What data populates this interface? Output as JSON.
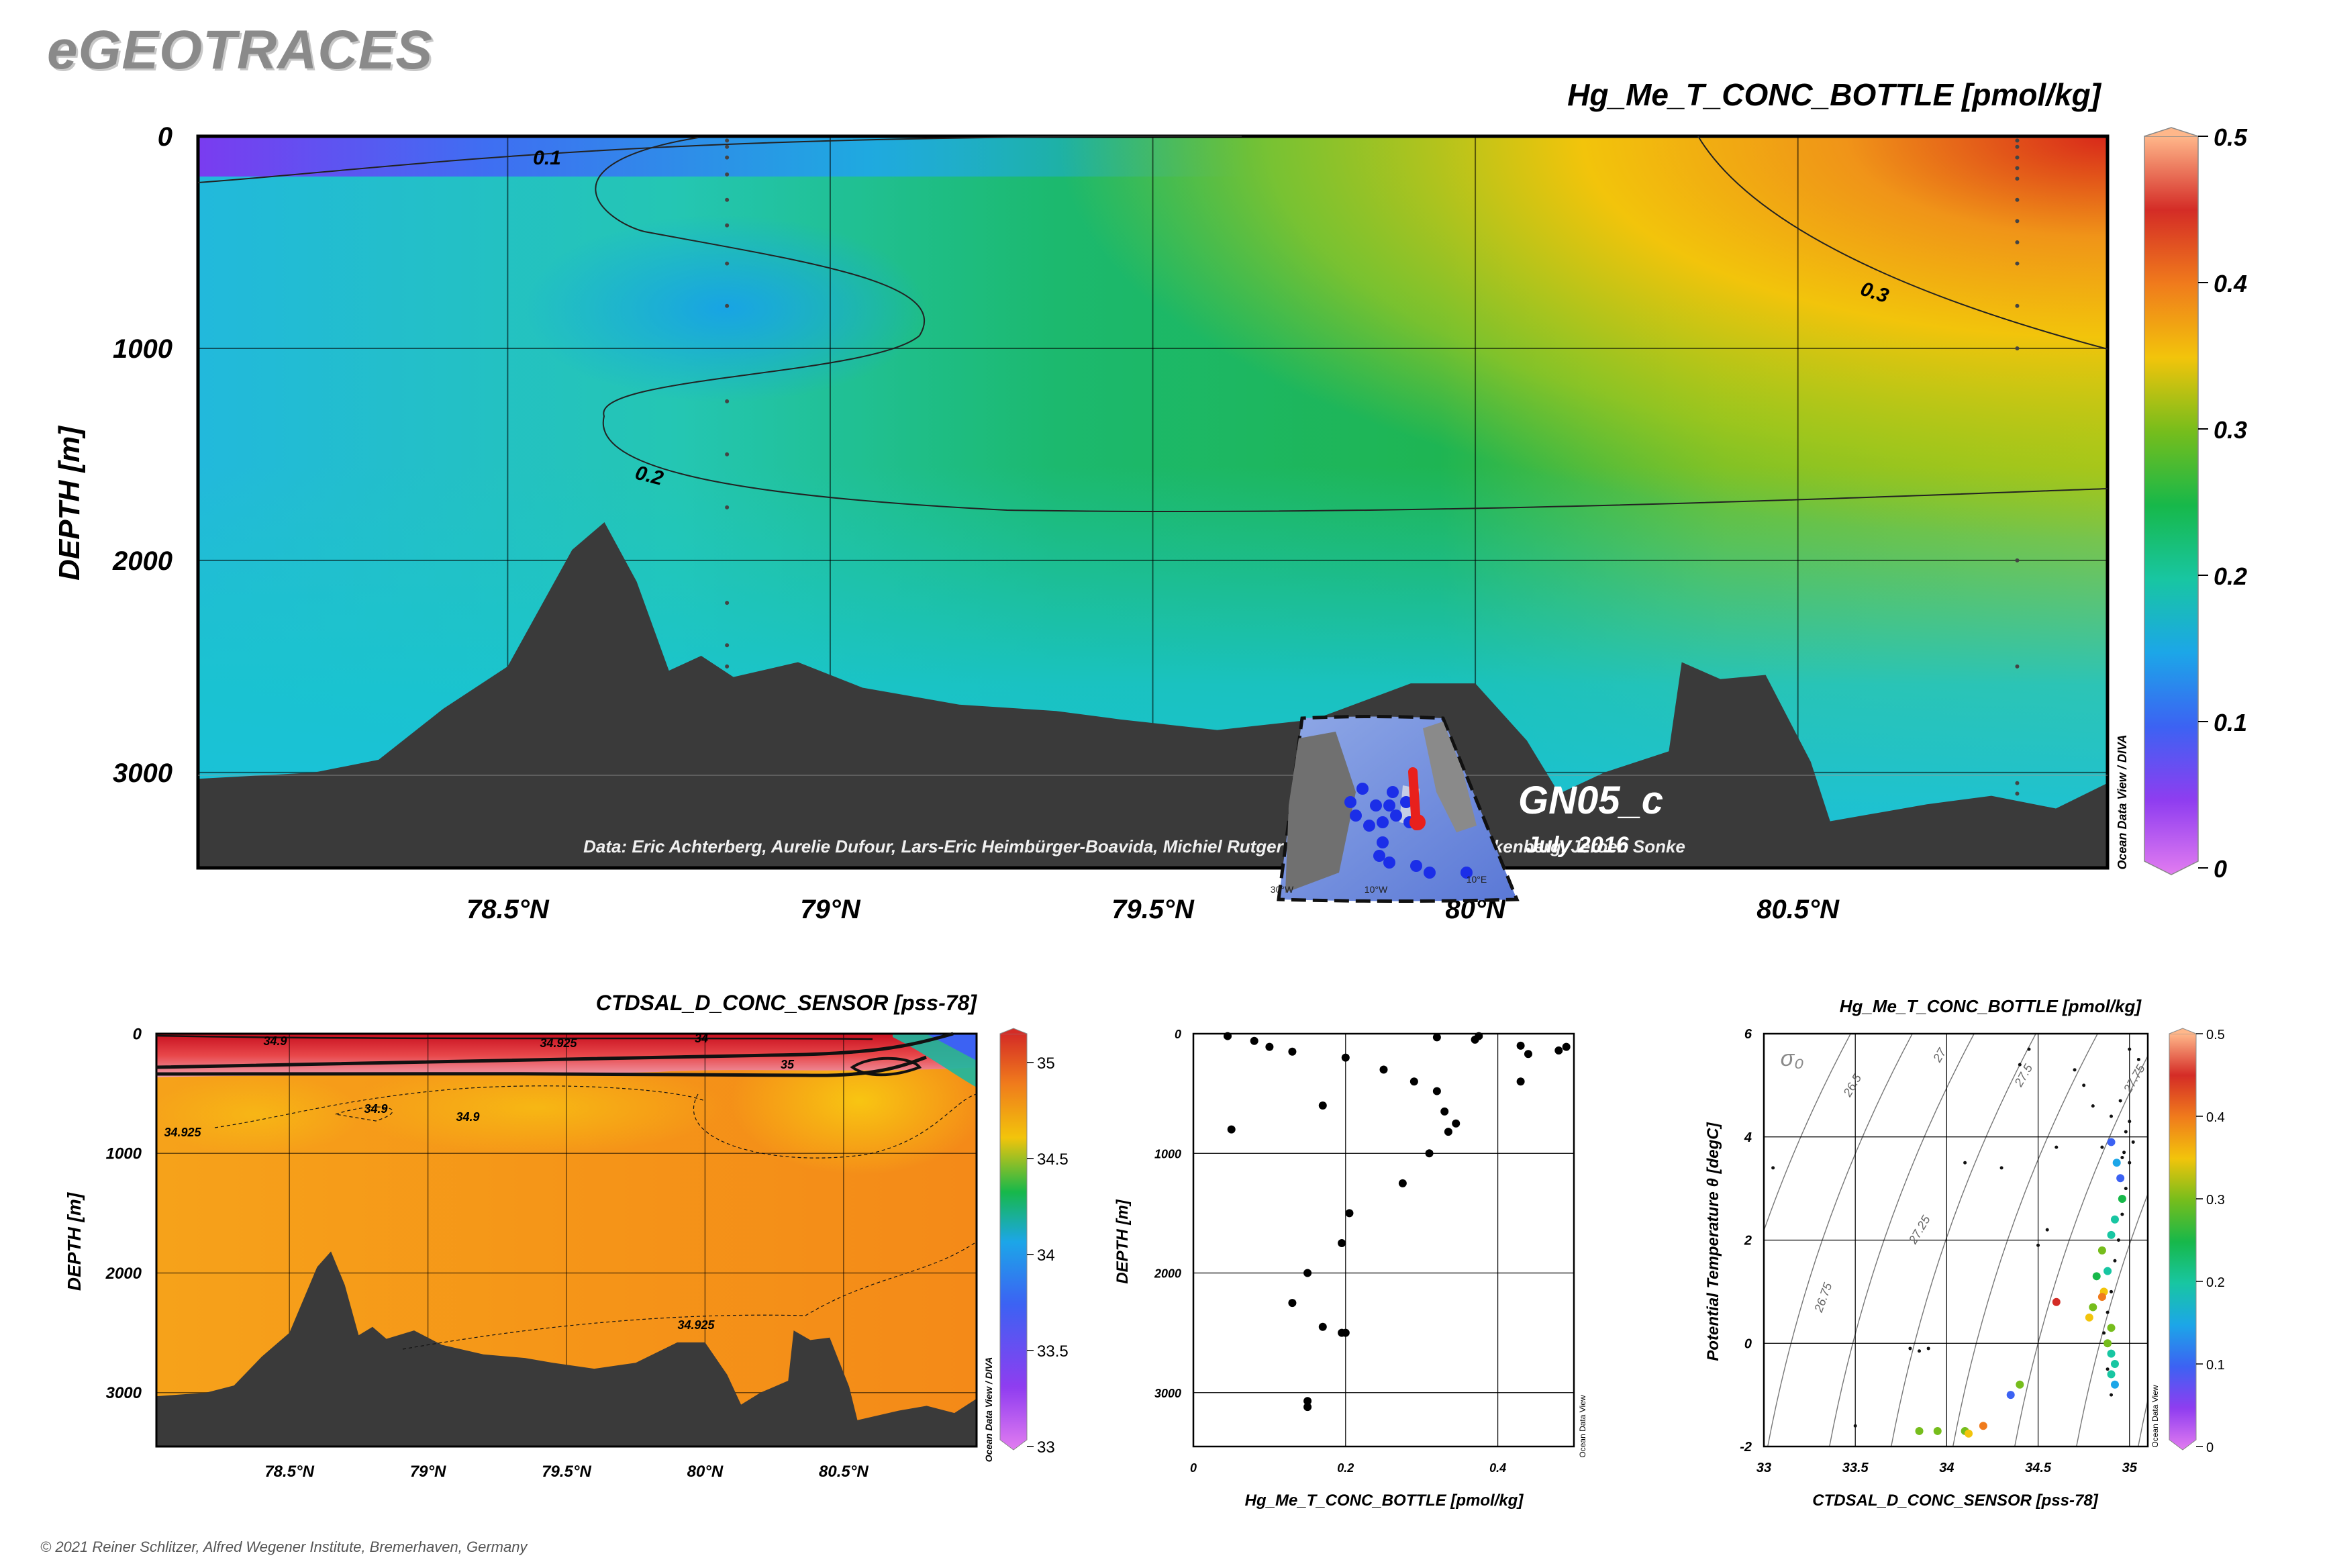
{
  "brand": "eGEOTRACES",
  "copyright": "© 2021 Reiner Schlitzer, Alfred Wegener Institute, Bremerhaven, Germany",
  "chart_data": [
    {
      "type": "heatmap",
      "id": "main-section",
      "title": "Hg_Me_T_CONC_BOTTLE [pmol/kg]",
      "ylabel": "DEPTH [m]",
      "xlabel": "",
      "x_ticks": [
        "78.5°N",
        "79°N",
        "79.5°N",
        "80°N",
        "80.5°N"
      ],
      "x_tick_values": [
        78.5,
        79.0,
        79.5,
        80.0,
        80.5
      ],
      "xlim": [
        78.02,
        80.98
      ],
      "y_ticks": [
        "0",
        "1000",
        "2000",
        "3000"
      ],
      "y_tick_values": [
        0,
        1000,
        2000,
        3000
      ],
      "ylim": [
        0,
        3450
      ],
      "y_inverted": true,
      "colorbar": {
        "ticks": [
          "0",
          "0.1",
          "0.2",
          "0.3",
          "0.4",
          "0.5"
        ],
        "range": [
          0,
          0.5
        ]
      },
      "contour_labels": [
        "0.1",
        "0.2",
        "0.3"
      ],
      "credit": "Data: Eric Achterberg, Aurelie Dufour, Lars-Eric Heimbürger-Boavida, Michiel Rutgers van der Loeff, Micha Rijkenberg, Jeroen Sonke",
      "cruise": "GN05_c",
      "date": "July 2016",
      "side_label": "Ocean Data View / DIVA",
      "inset_lon_labels": [
        "30°W",
        "10°W",
        "10°E"
      ],
      "bathymetry_points": [
        [
          78.02,
          3030
        ],
        [
          78.2,
          3000
        ],
        [
          78.3,
          2940
        ],
        [
          78.4,
          2700
        ],
        [
          78.5,
          2500
        ],
        [
          78.6,
          1950
        ],
        [
          78.65,
          1820
        ],
        [
          78.7,
          2100
        ],
        [
          78.75,
          2520
        ],
        [
          78.8,
          2450
        ],
        [
          78.85,
          2550
        ],
        [
          78.95,
          2480
        ],
        [
          79.05,
          2600
        ],
        [
          79.2,
          2680
        ],
        [
          79.35,
          2710
        ],
        [
          79.45,
          2750
        ],
        [
          79.6,
          2800
        ],
        [
          79.75,
          2750
        ],
        [
          79.9,
          2580
        ],
        [
          80.0,
          2580
        ],
        [
          80.08,
          2850
        ],
        [
          80.13,
          3100
        ],
        [
          80.2,
          3000
        ],
        [
          80.3,
          2900
        ],
        [
          80.32,
          2480
        ],
        [
          80.38,
          2560
        ],
        [
          80.45,
          2540
        ],
        [
          80.52,
          2950
        ],
        [
          80.55,
          3230
        ],
        [
          80.7,
          3150
        ],
        [
          80.8,
          3110
        ],
        [
          80.9,
          3170
        ],
        [
          80.98,
          3050
        ]
      ],
      "stations": [
        {
          "lat": 78.84,
          "depths": [
            20,
            50,
            100,
            180,
            300,
            420,
            600,
            800,
            1250,
            1500,
            1750,
            2200,
            2400,
            2500
          ]
        },
        {
          "lat": 80.84,
          "depths": [
            20,
            50,
            100,
            150,
            200,
            300,
            400,
            500,
            600,
            800,
            1000,
            2000,
            2500,
            3050,
            3100
          ]
        }
      ]
    },
    {
      "type": "heatmap",
      "id": "salinity-section",
      "title": "CTDSAL_D_CONC_SENSOR [pss-78]",
      "ylabel": "DEPTH [m]",
      "x_ticks": [
        "78.5°N",
        "79°N",
        "79.5°N",
        "80°N",
        "80.5°N"
      ],
      "x_tick_values": [
        78.5,
        79.0,
        79.5,
        80.0,
        80.5
      ],
      "xlim": [
        78.02,
        80.98
      ],
      "y_ticks": [
        "0",
        "1000",
        "2000",
        "3000"
      ],
      "y_tick_values": [
        0,
        1000,
        2000,
        3000
      ],
      "ylim": [
        0,
        3450
      ],
      "colorbar": {
        "ticks": [
          "33",
          "33.5",
          "34",
          "34.5",
          "35"
        ],
        "range": [
          33,
          35.15
        ]
      },
      "contour_labels": [
        "34.9",
        "34.925",
        "35",
        "34.9",
        "34.9",
        "34.925",
        "34.925",
        "34"
      ],
      "side_label": "Ocean Data View / DIVA"
    },
    {
      "type": "scatter",
      "id": "profile-scatter",
      "xlabel": "Hg_Me_T_CONC_BOTTLE [pmol/kg]",
      "ylabel": "DEPTH [m]",
      "x_ticks": [
        "0",
        "0.2",
        "0.4"
      ],
      "x_tick_values": [
        0,
        0.2,
        0.4
      ],
      "xlim": [
        0,
        0.5
      ],
      "y_ticks": [
        "0",
        "1000",
        "2000",
        "3000"
      ],
      "y_tick_values": [
        0,
        1000,
        2000,
        3000
      ],
      "ylim": [
        0,
        3450
      ],
      "side_label": "Ocean Data View",
      "points": [
        [
          0.045,
          20
        ],
        [
          0.08,
          60
        ],
        [
          0.1,
          110
        ],
        [
          0.13,
          150
        ],
        [
          0.2,
          200
        ],
        [
          0.25,
          300
        ],
        [
          0.32,
          30
        ],
        [
          0.37,
          50
        ],
        [
          0.375,
          20
        ],
        [
          0.43,
          100
        ],
        [
          0.44,
          170
        ],
        [
          0.48,
          140
        ],
        [
          0.49,
          110
        ],
        [
          0.05,
          800
        ],
        [
          0.17,
          600
        ],
        [
          0.29,
          400
        ],
        [
          0.32,
          480
        ],
        [
          0.33,
          650
        ],
        [
          0.345,
          750
        ],
        [
          0.43,
          400
        ],
        [
          0.335,
          820
        ],
        [
          0.31,
          1000
        ],
        [
          0.275,
          1250
        ],
        [
          0.205,
          1500
        ],
        [
          0.195,
          1750
        ],
        [
          0.15,
          2000
        ],
        [
          0.13,
          2250
        ],
        [
          0.17,
          2450
        ],
        [
          0.195,
          2500
        ],
        [
          0.2,
          2500
        ],
        [
          0.15,
          3070
        ],
        [
          0.15,
          3120
        ]
      ]
    },
    {
      "type": "scatter",
      "id": "ts-diagram",
      "title": "Hg_Me_T_CONC_BOTTLE [pmol/kg]",
      "xlabel": "CTDSAL_D_CONC_SENSOR [pss-78]",
      "ylabel": "Potential Temperature θ [degC]",
      "x_ticks": [
        "33",
        "33.5",
        "34",
        "34.5",
        "35"
      ],
      "x_tick_values": [
        33,
        33.5,
        34,
        34.5,
        35
      ],
      "xlim": [
        33,
        35.1
      ],
      "y_ticks": [
        "-2",
        "0",
        "2",
        "4",
        "6"
      ],
      "y_tick_values": [
        -2,
        0,
        2,
        4,
        6
      ],
      "ylim": [
        -2,
        6
      ],
      "isopycnal_symbol": "σ₀",
      "isopycnal_labels": [
        "26.5",
        "27",
        "27.5",
        "26.75",
        "27.25",
        "27.75"
      ],
      "colorbar": {
        "ticks": [
          "0",
          "0.1",
          "0.2",
          "0.3",
          "0.4",
          "0.5"
        ],
        "range": [
          0,
          0.5
        ]
      },
      "side_label": "Ocean Data View",
      "points": [
        [
          34.9,
          3.9,
          0.1
        ],
        [
          34.93,
          3.5,
          0.15
        ],
        [
          34.95,
          3.2,
          0.12
        ],
        [
          34.96,
          2.8,
          0.25
        ],
        [
          34.92,
          2.4,
          0.18
        ],
        [
          34.9,
          2.1,
          0.22
        ],
        [
          34.85,
          1.8,
          0.3
        ],
        [
          34.88,
          1.4,
          0.2
        ],
        [
          34.82,
          1.3,
          0.24
        ],
        [
          34.86,
          1.0,
          0.35
        ],
        [
          34.85,
          0.9,
          0.4
        ],
        [
          34.6,
          0.8,
          0.45
        ],
        [
          34.8,
          0.7,
          0.32
        ],
        [
          34.78,
          0.5,
          0.35
        ],
        [
          34.9,
          0.3,
          0.3
        ],
        [
          34.88,
          0.0,
          0.28
        ],
        [
          34.9,
          -0.2,
          0.22
        ],
        [
          34.92,
          -0.4,
          0.2
        ],
        [
          34.9,
          -0.6,
          0.18
        ],
        [
          34.92,
          -0.8,
          0.16
        ],
        [
          34.4,
          -0.8,
          0.3
        ],
        [
          34.35,
          -1.0,
          0.1
        ],
        [
          34.2,
          -1.6,
          0.42
        ],
        [
          34.1,
          -1.7,
          0.3
        ],
        [
          33.85,
          -1.7,
          0.32
        ],
        [
          33.95,
          -1.7,
          0.3
        ],
        [
          34.12,
          -1.75,
          0.33
        ]
      ],
      "small_points": [
        [
          33.8,
          -0.1
        ],
        [
          33.85,
          -0.15
        ],
        [
          33.9,
          -0.1
        ],
        [
          33.05,
          3.4
        ],
        [
          33.5,
          -1.6
        ],
        [
          34.1,
          3.5
        ],
        [
          34.3,
          3.4
        ],
        [
          34.5,
          1.9
        ],
        [
          34.55,
          2.2
        ],
        [
          34.7,
          5.3
        ],
        [
          34.75,
          5.0
        ],
        [
          34.8,
          4.6
        ],
        [
          34.85,
          3.8
        ],
        [
          34.9,
          4.4
        ],
        [
          34.95,
          4.7
        ],
        [
          35.0,
          4.3
        ],
        [
          35.02,
          3.9
        ],
        [
          35.0,
          3.5
        ],
        [
          34.98,
          3.0
        ],
        [
          34.96,
          2.5
        ],
        [
          34.94,
          2.0
        ],
        [
          34.92,
          1.6
        ],
        [
          34.9,
          1.0
        ],
        [
          34.88,
          0.6
        ],
        [
          34.86,
          0.2
        ],
        [
          34.88,
          -0.5
        ],
        [
          34.9,
          -1.0
        ],
        [
          34.6,
          3.8
        ],
        [
          34.4,
          5.4
        ],
        [
          34.45,
          5.7
        ],
        [
          35.05,
          5.5
        ],
        [
          35.0,
          5.7
        ],
        [
          34.98,
          4.1
        ],
        [
          34.97,
          3.7
        ],
        [
          34.96,
          3.6
        ]
      ]
    }
  ]
}
